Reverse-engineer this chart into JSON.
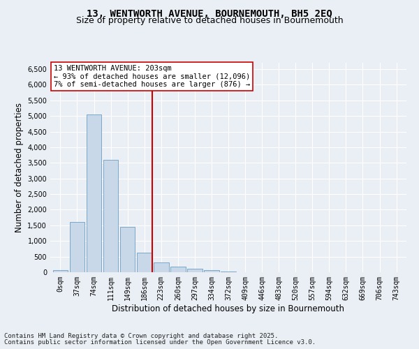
{
  "title": "13, WENTWORTH AVENUE, BOURNEMOUTH, BH5 2EQ",
  "subtitle": "Size of property relative to detached houses in Bournemouth",
  "xlabel": "Distribution of detached houses by size in Bournemouth",
  "ylabel": "Number of detached properties",
  "bin_labels": [
    "0sqm",
    "37sqm",
    "74sqm",
    "111sqm",
    "149sqm",
    "186sqm",
    "223sqm",
    "260sqm",
    "297sqm",
    "334sqm",
    "372sqm",
    "409sqm",
    "446sqm",
    "483sqm",
    "520sqm",
    "557sqm",
    "594sqm",
    "632sqm",
    "669sqm",
    "706sqm",
    "743sqm"
  ],
  "bar_heights": [
    60,
    1600,
    5050,
    3600,
    1450,
    620,
    310,
    170,
    120,
    70,
    20,
    5,
    2,
    1,
    0,
    0,
    0,
    0,
    0,
    0,
    0
  ],
  "bar_color": "#c8d8e8",
  "bar_edge_color": "#5590bb",
  "vline_x": 5.18,
  "vline_color": "#cc0000",
  "annotation_title": "13 WENTWORTH AVENUE: 203sqm",
  "annotation_line1": "← 93% of detached houses are smaller (12,096)",
  "annotation_line2": "7% of semi-detached houses are larger (876) →",
  "annotation_box_color": "#ffffff",
  "annotation_box_edge": "#cc0000",
  "ylim": [
    0,
    6700
  ],
  "yticks": [
    0,
    500,
    1000,
    1500,
    2000,
    2500,
    3000,
    3500,
    4000,
    4500,
    5000,
    5500,
    6000,
    6500
  ],
  "background_color": "#eaeff5",
  "grid_color": "#ffffff",
  "footer_line1": "Contains HM Land Registry data © Crown copyright and database right 2025.",
  "footer_line2": "Contains public sector information licensed under the Open Government Licence v3.0.",
  "title_fontsize": 10,
  "subtitle_fontsize": 9,
  "label_fontsize": 8.5,
  "tick_fontsize": 7,
  "annotation_fontsize": 7.5,
  "footer_fontsize": 6.5
}
